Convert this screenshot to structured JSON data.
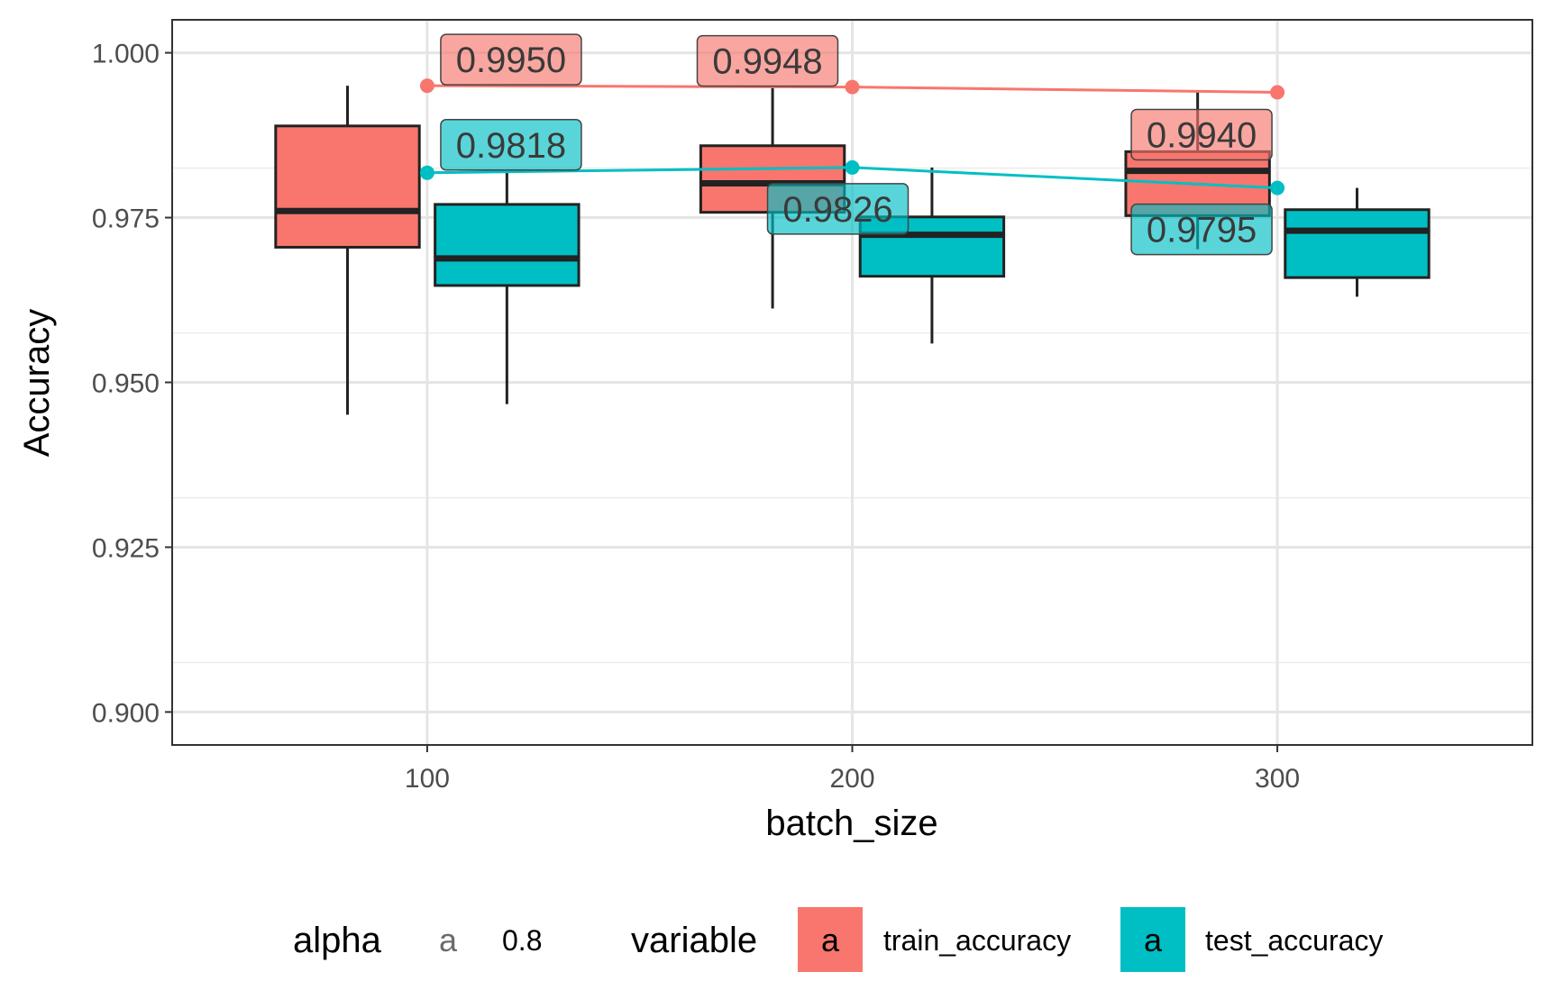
{
  "chart_data": {
    "type": "box",
    "xlabel": "batch_size",
    "ylabel": "Accuracy",
    "ylim": [
      0.895,
      1.005
    ],
    "xlim": [
      40,
      360
    ],
    "x_ticks": [
      "100",
      "200",
      "300"
    ],
    "y_ticks": [
      "0.900",
      "0.925",
      "0.950",
      "0.975",
      "1.000"
    ],
    "grid": true,
    "legend_position": "bottom",
    "boxes": [
      {
        "series": "train_accuracy",
        "x": 100,
        "min": 0.9451,
        "q1": 0.9705,
        "median": 0.976,
        "q3": 0.9889,
        "max": 0.995
      },
      {
        "series": "test_accuracy",
        "x": 100,
        "min": 0.9467,
        "q1": 0.9647,
        "median": 0.9688,
        "q3": 0.977,
        "max": 0.9818
      },
      {
        "series": "train_accuracy",
        "x": 200,
        "min": 0.9612,
        "q1": 0.9758,
        "median": 0.9802,
        "q3": 0.9859,
        "max": 0.9948
      },
      {
        "series": "test_accuracy",
        "x": 200,
        "min": 0.9559,
        "q1": 0.9661,
        "median": 0.9724,
        "q3": 0.9751,
        "max": 0.9826
      },
      {
        "series": "train_accuracy",
        "x": 300,
        "min": 0.9702,
        "q1": 0.9753,
        "median": 0.9821,
        "q3": 0.985,
        "max": 0.994
      },
      {
        "series": "test_accuracy",
        "x": 300,
        "min": 0.963,
        "q1": 0.9659,
        "median": 0.973,
        "q3": 0.9762,
        "max": 0.9795
      }
    ],
    "series": [
      {
        "name": "train_accuracy",
        "color": "#F8766D",
        "x": [
          100,
          200,
          300
        ],
        "values": [
          0.995,
          0.9948,
          0.994
        ]
      },
      {
        "name": "test_accuracy",
        "color": "#00BFC4",
        "x": [
          100,
          200,
          300
        ],
        "values": [
          0.9818,
          0.9826,
          0.9795
        ]
      }
    ],
    "data_labels": [
      {
        "series": "train_accuracy",
        "x": 100,
        "text": "0.9950"
      },
      {
        "series": "train_accuracy",
        "x": 200,
        "text": "0.9948"
      },
      {
        "series": "train_accuracy",
        "x": 300,
        "text": "0.9940"
      },
      {
        "series": "test_accuracy",
        "x": 100,
        "text": "0.9818"
      },
      {
        "series": "test_accuracy",
        "x": 200,
        "text": "0.9826"
      },
      {
        "series": "test_accuracy",
        "x": 300,
        "text": "0.9795"
      }
    ],
    "legend": {
      "alpha_title": "alpha",
      "alpha_key": "a",
      "alpha_value": "0.8",
      "variable_title": "variable",
      "variable_key": "a",
      "items": [
        "train_accuracy",
        "test_accuracy"
      ]
    },
    "colors": {
      "train_accuracy": "#F8766D",
      "test_accuracy": "#00BFC4",
      "panel_border": "#333333",
      "grid": "#e5e5e5"
    }
  }
}
